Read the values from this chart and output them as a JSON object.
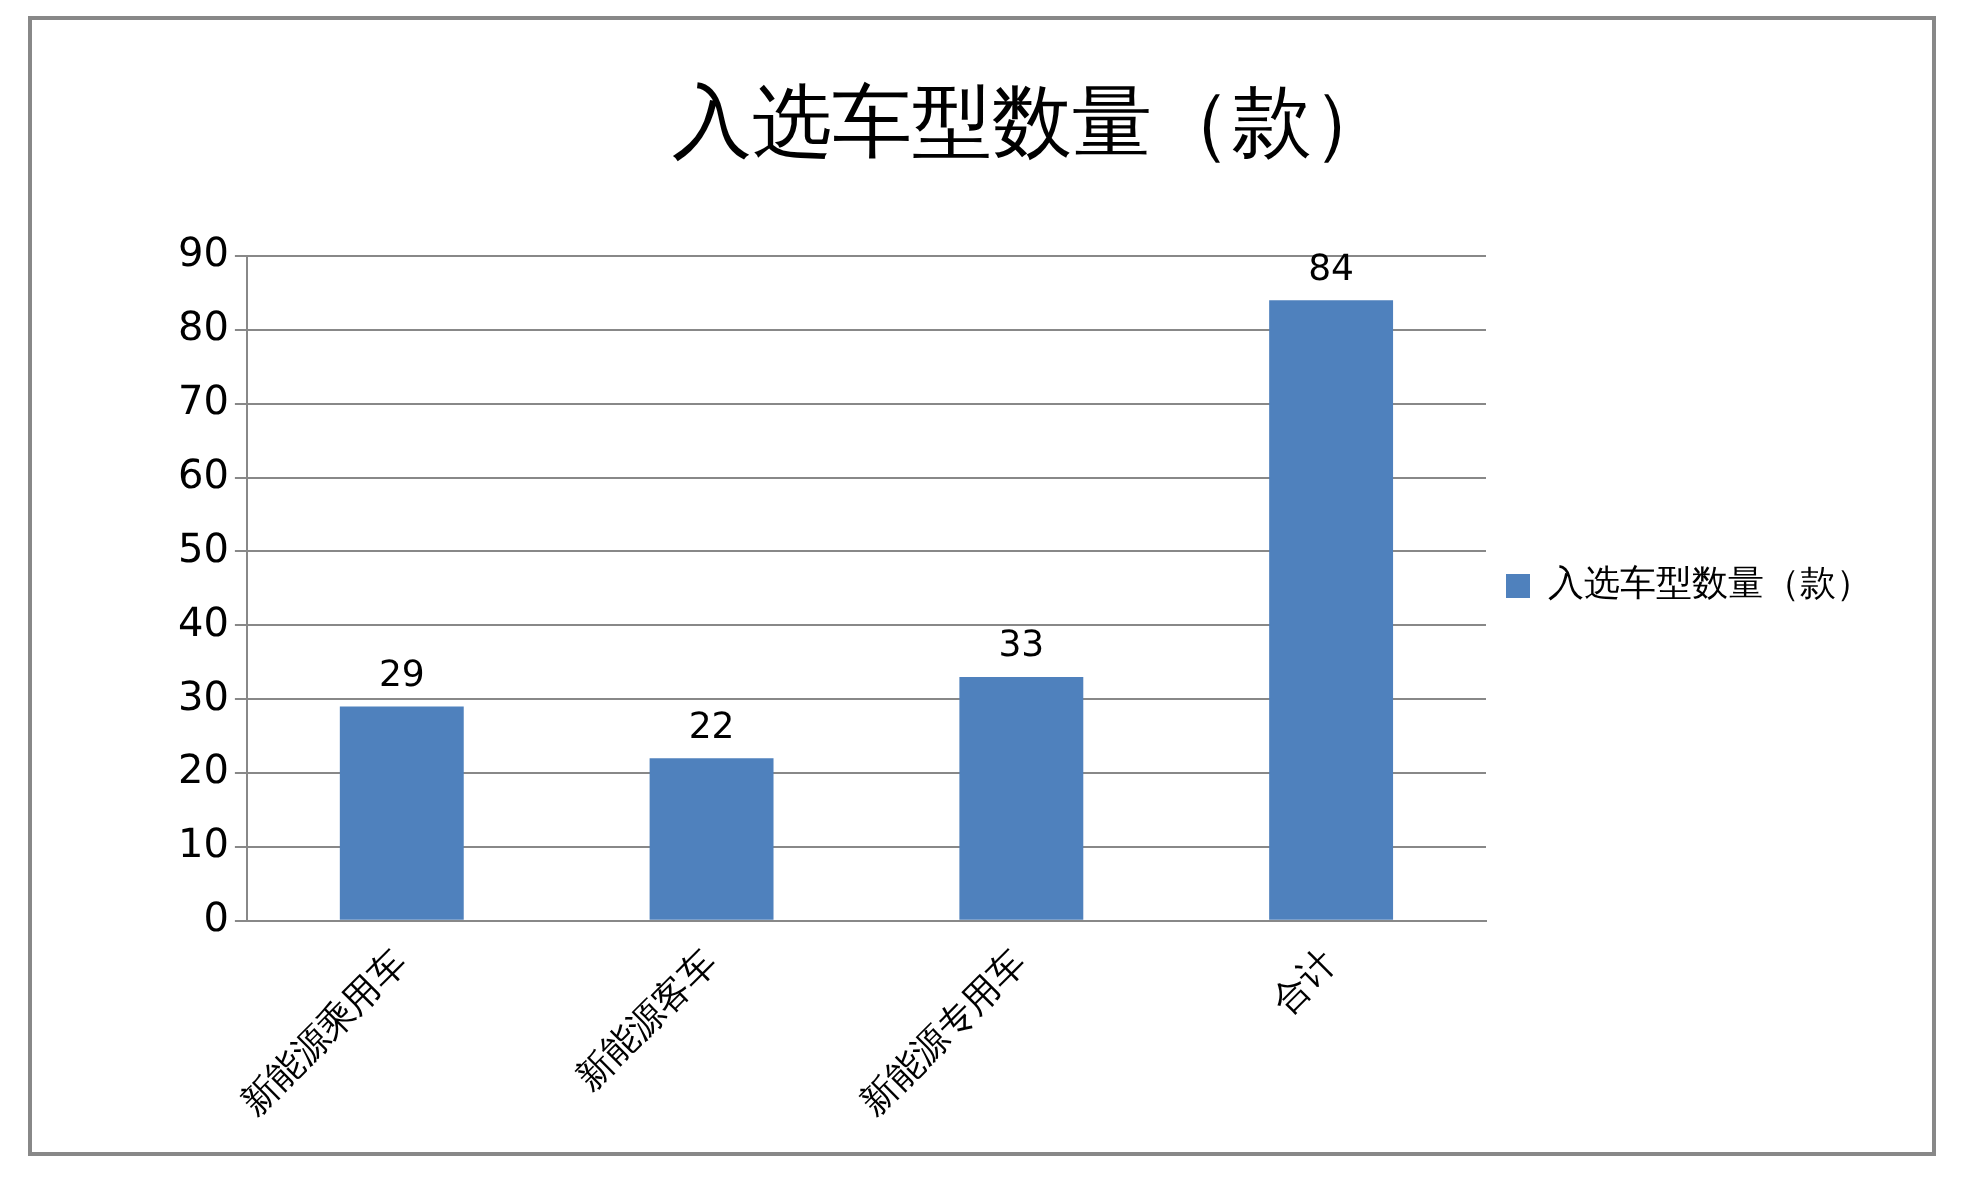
{
  "chart_data": {
    "type": "bar",
    "title": "入选车型数量（款）",
    "categories": [
      "新能源乘用车",
      "新能源客车",
      "新能源专用车",
      "合计"
    ],
    "series": [
      {
        "name": "入选车型数量（款）",
        "color": "#4f81bd",
        "values": [
          29,
          22,
          33,
          84
        ]
      }
    ],
    "ylim": [
      0,
      90
    ],
    "yticks": [
      0,
      10,
      20,
      30,
      40,
      50,
      60,
      70,
      80,
      90
    ],
    "grid": "y",
    "legend": "right",
    "data_labels": true
  }
}
